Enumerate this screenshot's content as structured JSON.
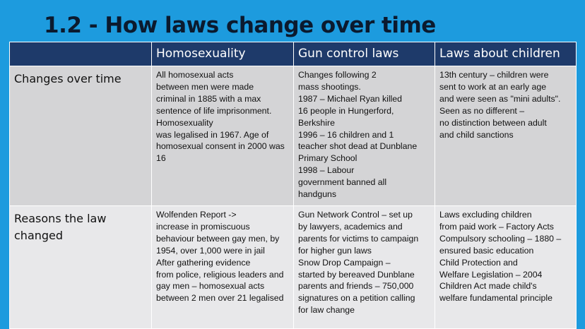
{
  "title": "1.2 - How laws change over time",
  "table": {
    "columns": [
      "",
      "Homosexuality",
      "Gun control laws",
      "Laws about children"
    ],
    "rows": [
      {
        "header": "Changes over time",
        "cells": [
          [
            "All homosexual acts",
            "between men were made",
            "criminal in 1885 with a max",
            "sentence of life imprisonment.",
            "Homosexuality",
            "was legalised in 1967. Age of",
            "homosexual consent in 2000 was",
            "16"
          ],
          [
            "Changes following 2",
            "mass shootings.",
            "1987 – Michael Ryan killed",
            "16 people in Hungerford,",
            "Berkshire",
            "1996 – 16 children and 1",
            "teacher shot dead at Dunblane",
            "Primary School",
            "1998 – Labour",
            "government banned all",
            "handguns"
          ],
          [
            "13th century – children were",
            "sent to work at an early age",
            "and were seen as \"mini adults\".",
            "Seen as no different –",
            "no distinction between adult",
            "and child sanctions"
          ]
        ]
      },
      {
        "header": "Reasons the law changed",
        "cells": [
          [
            "Wolfenden Report ->",
            "increase in  promiscuous",
            "behaviour between gay men, by",
            "1954, over 1,000 were in jail",
            "After gathering evidence",
            "from police, religious leaders and",
            "gay men – homosexual acts",
            "between 2 men over 21 legalised"
          ],
          [
            "Gun Network Control – set up",
            "by lawyers, academics and",
            "parents for victims to campaign",
            "for higher gun laws",
            "Snow Drop Campaign –",
            "started by bereaved Dunblane",
            "parents and friends – 750,000",
            "signatures on a petition calling",
            "for law change"
          ],
          [
            "Laws excluding children",
            "from paid work – Factory Acts",
            "Compulsory schooling – 1880 –",
            " ensured basic education",
            "Child Protection and",
            "Welfare Legislation – 2004",
            "Children Act made child's",
            "welfare fundamental principle"
          ]
        ]
      }
    ]
  }
}
